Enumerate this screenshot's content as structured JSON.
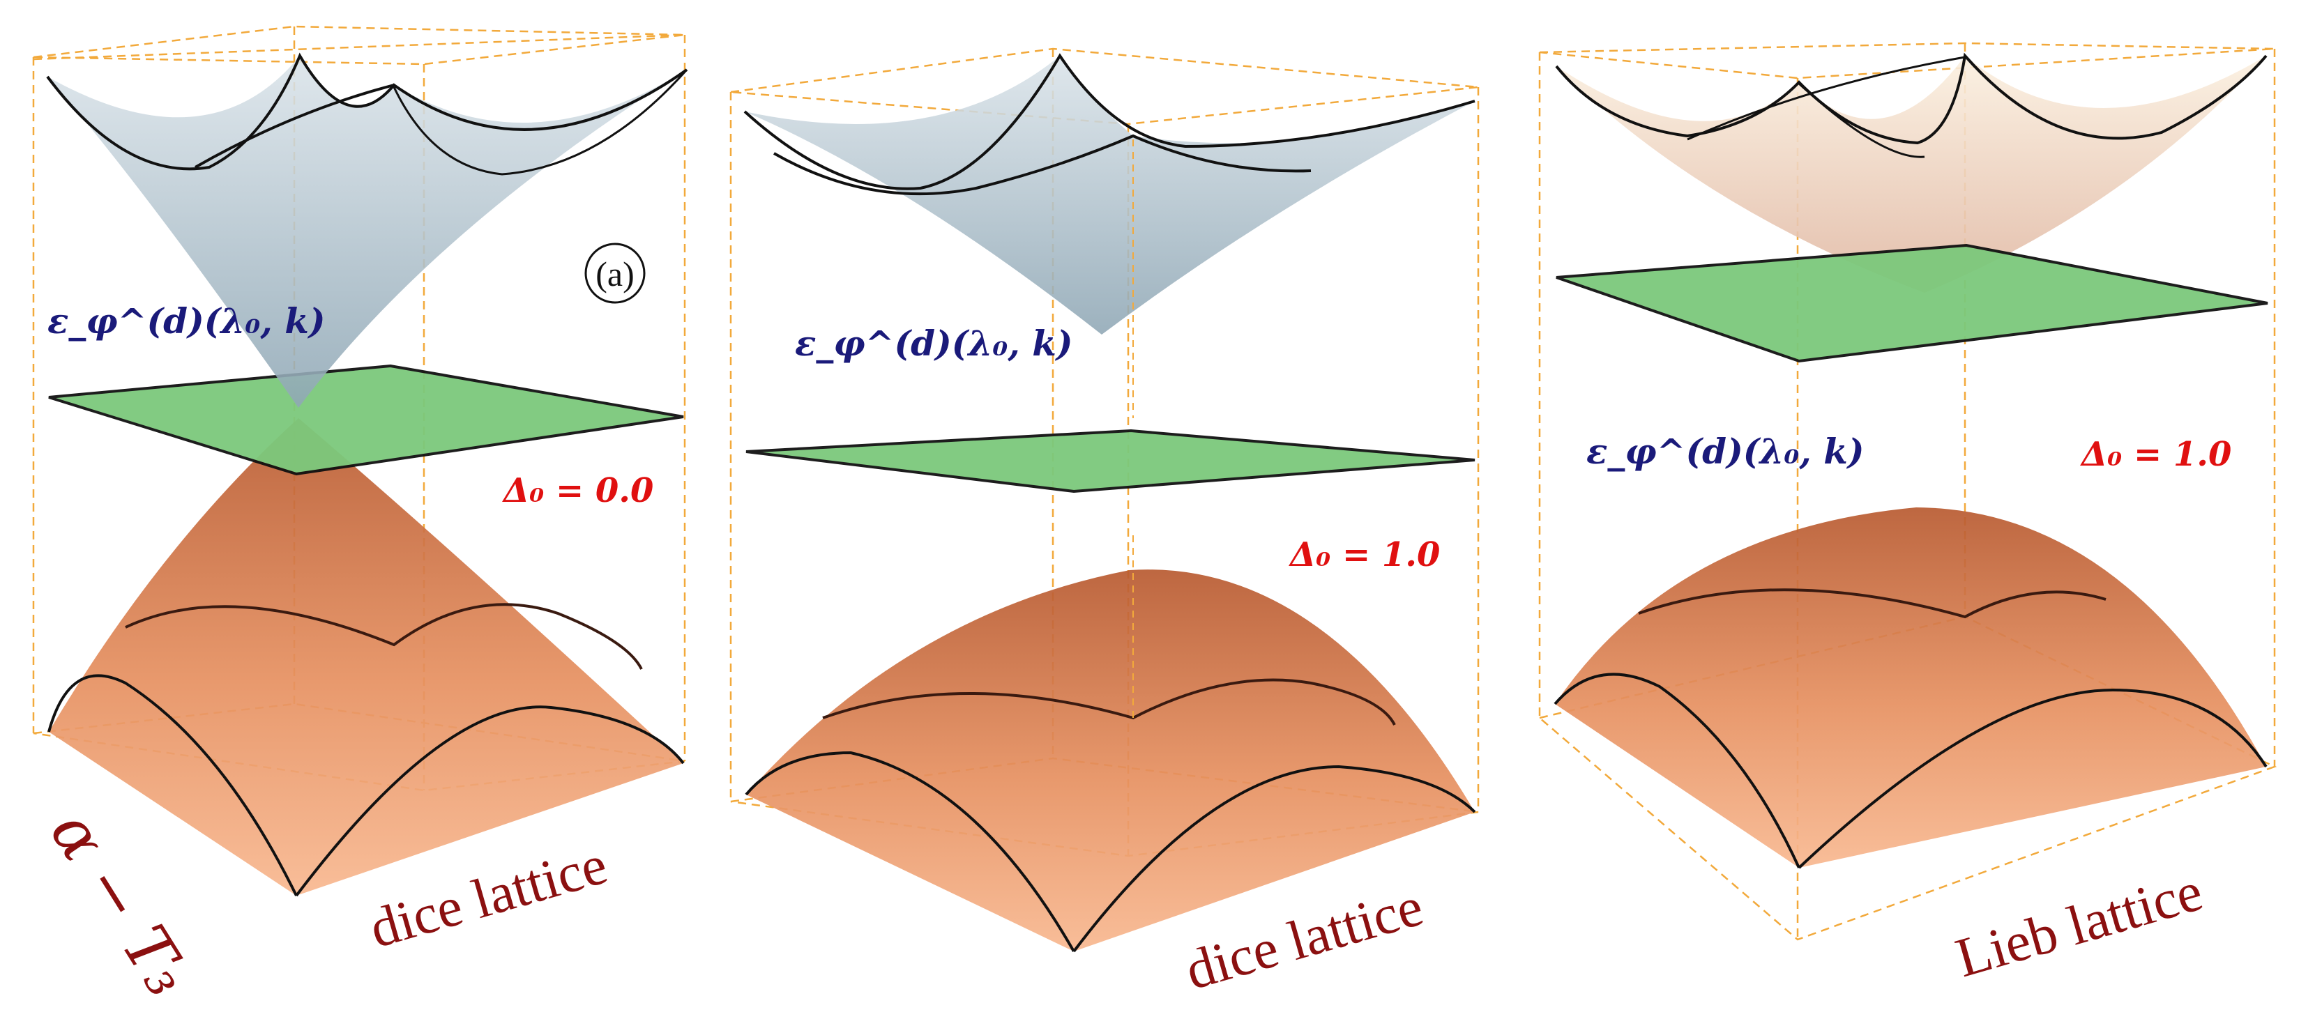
{
  "colors": {
    "box_dash": "#f2a93b",
    "flat_band": "#7cc97c",
    "upper_band_blue": "#9fb3c0",
    "upper_band_cream": "#f3dcc4",
    "lower_band_light": "#f6b08a",
    "lower_band_dark": "#c8653a",
    "outline": "#111111",
    "energy_label": "#1a1a7a",
    "delta_label": "#e01010",
    "lattice_label": "#8b1010"
  },
  "panels": [
    {
      "energy_label": "ε_φ^(d)(λ₀, k)",
      "delta_label": "Δ₀ = 0.0",
      "lattice_label": "dice lattice",
      "panel_tag": "(a)",
      "side_label": "α − T₃"
    },
    {
      "energy_label": "ε_φ^(d)(λ₀, k)",
      "delta_label": "Δ₀ = 1.0",
      "lattice_label": "dice lattice"
    },
    {
      "energy_label": "ε_φ^(d)(λ₀, k)",
      "delta_label": "Δ₀ = 1.0",
      "lattice_label": "Lieb lattice"
    }
  ]
}
